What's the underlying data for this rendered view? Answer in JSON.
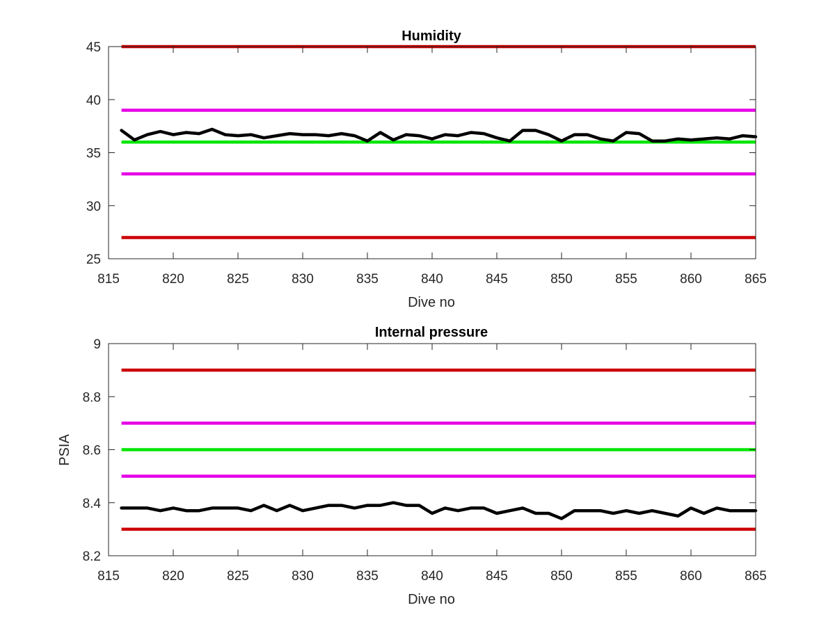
{
  "chart_data": [
    {
      "type": "line",
      "title": "Humidity",
      "xlabel": "Dive no",
      "ylabel": "",
      "xlim": [
        815,
        865
      ],
      "ylim": [
        25,
        45
      ],
      "xticks": [
        "815",
        "820",
        "825",
        "830",
        "835",
        "840",
        "845",
        "850",
        "855",
        "860",
        "865"
      ],
      "yticks": [
        "25",
        "30",
        "35",
        "40",
        "45"
      ],
      "grid": false,
      "legend": "none",
      "reference_lines": [
        {
          "y": 45,
          "color": "#cc0000"
        },
        {
          "y": 39,
          "color": "#e600e6"
        },
        {
          "y": 36,
          "color": "#00e600"
        },
        {
          "y": 33,
          "color": "#e600e6"
        },
        {
          "y": 27,
          "color": "#cc0000"
        }
      ],
      "series": [
        {
          "color": "#000000",
          "x": [
            816,
            817,
            818,
            819,
            820,
            821,
            822,
            823,
            824,
            825,
            826,
            827,
            828,
            829,
            830,
            831,
            832,
            833,
            834,
            835,
            836,
            837,
            838,
            839,
            840,
            841,
            842,
            843,
            844,
            845,
            846,
            847,
            848,
            849,
            850,
            851,
            852,
            853,
            854,
            855,
            856,
            857,
            858,
            859,
            860,
            861,
            862,
            863,
            864,
            865
          ],
          "values": [
            37.1,
            36.2,
            36.7,
            37.0,
            36.7,
            36.9,
            36.8,
            37.2,
            36.7,
            36.6,
            36.7,
            36.4,
            36.6,
            36.8,
            36.7,
            36.7,
            36.6,
            36.8,
            36.6,
            36.1,
            36.9,
            36.2,
            36.7,
            36.6,
            36.3,
            36.7,
            36.6,
            36.9,
            36.8,
            36.4,
            36.1,
            37.1,
            37.1,
            36.7,
            36.1,
            36.7,
            36.7,
            36.3,
            36.1,
            36.9,
            36.8,
            36.1,
            36.1,
            36.3,
            36.2,
            36.3,
            36.4,
            36.3,
            36.6,
            36.5
          ]
        }
      ]
    },
    {
      "type": "line",
      "title": "Internal pressure",
      "xlabel": "Dive no",
      "ylabel": "PSIA",
      "xlim": [
        815,
        865
      ],
      "ylim": [
        8.2,
        9
      ],
      "xticks": [
        "815",
        "820",
        "825",
        "830",
        "835",
        "840",
        "845",
        "850",
        "855",
        "860",
        "865"
      ],
      "yticks": [
        "8.2",
        "8.4",
        "8.6",
        "8.8",
        "9"
      ],
      "grid": false,
      "legend": "none",
      "reference_lines": [
        {
          "y": 8.9,
          "color": "#cc0000"
        },
        {
          "y": 8.7,
          "color": "#e600e6"
        },
        {
          "y": 8.6,
          "color": "#00e600"
        },
        {
          "y": 8.5,
          "color": "#e600e6"
        },
        {
          "y": 8.3,
          "color": "#cc0000"
        }
      ],
      "series": [
        {
          "color": "#000000",
          "x": [
            816,
            817,
            818,
            819,
            820,
            821,
            822,
            823,
            824,
            825,
            826,
            827,
            828,
            829,
            830,
            831,
            832,
            833,
            834,
            835,
            836,
            837,
            838,
            839,
            840,
            841,
            842,
            843,
            844,
            845,
            846,
            847,
            848,
            849,
            850,
            851,
            852,
            853,
            854,
            855,
            856,
            857,
            858,
            859,
            860,
            861,
            862,
            863,
            864,
            865
          ],
          "values": [
            8.38,
            8.38,
            8.38,
            8.37,
            8.38,
            8.37,
            8.37,
            8.38,
            8.38,
            8.38,
            8.37,
            8.39,
            8.37,
            8.39,
            8.37,
            8.38,
            8.39,
            8.39,
            8.38,
            8.39,
            8.39,
            8.4,
            8.39,
            8.39,
            8.36,
            8.38,
            8.37,
            8.38,
            8.38,
            8.36,
            8.37,
            8.38,
            8.36,
            8.36,
            8.34,
            8.37,
            8.37,
            8.37,
            8.36,
            8.37,
            8.36,
            8.37,
            8.36,
            8.35,
            8.38,
            8.36,
            8.38,
            8.37,
            8.37,
            8.37
          ]
        }
      ]
    }
  ]
}
